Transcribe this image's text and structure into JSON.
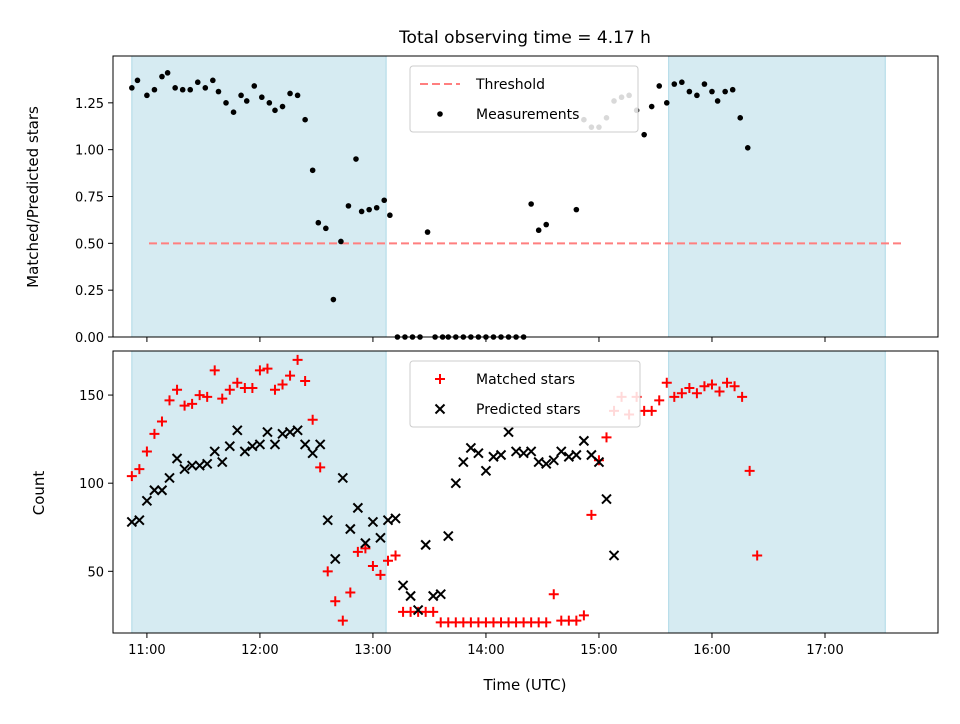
{
  "title": "Total observing time = 4.17 h",
  "xlabel": "Time (UTC)",
  "colors": {
    "shade": "#add8e6",
    "threshold": "#ff7f7f",
    "matched": "#ff0000",
    "predicted": "#000000",
    "measurement": "#000000"
  },
  "chart_data": [
    {
      "type": "scatter",
      "ylabel": "Matched/Predicted stars",
      "xlim": [
        "10:42",
        "18:00"
      ],
      "ylim": [
        0,
        1.5
      ],
      "yticks": [
        0.0,
        0.25,
        0.5,
        0.75,
        1.0,
        1.25
      ],
      "ytick_labels": [
        "0.00",
        "0.25",
        "0.50",
        "0.75",
        "1.00",
        "1.25"
      ],
      "xticks": [
        "11:00",
        "12:00",
        "13:00",
        "14:00",
        "15:00",
        "16:00",
        "17:00"
      ],
      "shaded_spans": [
        [
          "10:52",
          "13:07"
        ],
        [
          "15:37",
          "17:32"
        ]
      ],
      "threshold": {
        "name": "Threshold",
        "value": 0.5,
        "style": "dashed"
      },
      "legend_position": "upper center",
      "series": [
        {
          "name": "Measurements",
          "marker": "dot",
          "x": [
            "10:52",
            "10:55",
            "11:00",
            "11:04",
            "11:08",
            "11:11",
            "11:15",
            "11:19",
            "11:23",
            "11:27",
            "11:31",
            "11:35",
            "11:38",
            "11:42",
            "11:46",
            "11:50",
            "11:53",
            "11:57",
            "12:01",
            "12:05",
            "12:08",
            "12:12",
            "12:16",
            "12:20",
            "12:24",
            "12:28",
            "12:31",
            "12:35",
            "12:39",
            "12:43",
            "12:47",
            "12:51",
            "12:54",
            "12:58",
            "13:02",
            "13:06",
            "13:09",
            "13:13",
            "13:17",
            "13:21",
            "13:25",
            "13:29",
            "13:33",
            "13:37",
            "13:40",
            "13:44",
            "13:48",
            "13:52",
            "13:56",
            "14:00",
            "14:04",
            "14:08",
            "14:12",
            "14:16",
            "14:20",
            "14:24",
            "14:28",
            "14:32",
            "14:36",
            "14:40",
            "14:44",
            "14:48",
            "14:52",
            "14:56",
            "15:00",
            "15:04",
            "15:08",
            "15:12",
            "15:16",
            "15:20",
            "15:24",
            "15:28",
            "15:32",
            "15:36",
            "15:40",
            "15:44",
            "15:48",
            "15:52",
            "15:56",
            "16:00",
            "16:03",
            "16:07",
            "16:11",
            "16:15",
            "16:19",
            "16:23",
            "16:27",
            "16:30",
            "16:34",
            "16:38",
            "16:42",
            "16:46",
            "16:50",
            "16:54",
            "16:58",
            "17:01",
            "17:05",
            "17:09",
            "17:13",
            "17:17",
            "17:21",
            "17:25",
            "17:29",
            "17:32"
          ],
          "y": [
            1.33,
            1.37,
            1.29,
            1.32,
            1.39,
            1.41,
            1.33,
            1.32,
            1.32,
            1.36,
            1.33,
            1.37,
            1.31,
            1.25,
            1.2,
            1.29,
            1.26,
            1.34,
            1.28,
            1.25,
            1.21,
            1.23,
            1.3,
            1.29,
            1.16,
            0.89,
            0.61,
            0.58,
            0.2,
            0.51,
            0.7,
            0.95,
            0.67,
            0.68,
            0.69,
            0.73,
            0.65,
            0.0,
            0.0,
            0.0,
            0.0,
            0.56,
            0.0,
            0.0,
            0.0,
            0.0,
            0.0,
            0.0,
            0.0,
            0.0,
            0.0,
            0.0,
            0.0,
            0.0,
            0.0,
            0.71,
            0.57,
            0.6,
            null,
            null,
            null,
            0.68,
            1.16,
            1.12,
            1.12,
            1.17,
            1.26,
            1.28,
            1.29,
            1.21,
            1.08,
            1.23,
            1.34,
            1.25,
            1.35,
            1.36,
            1.31,
            1.29,
            1.35,
            1.31,
            1.26,
            1.31,
            1.32,
            1.17,
            1.01,
            null,
            null,
            null,
            null,
            null,
            null,
            null,
            null,
            null,
            null,
            null,
            null,
            null,
            null,
            null,
            null,
            null,
            null,
            null
          ]
        }
      ]
    },
    {
      "type": "scatter",
      "ylabel": "Count",
      "xlim": [
        "10:42",
        "18:00"
      ],
      "ylim": [
        15,
        175
      ],
      "yticks": [
        50,
        100,
        150
      ],
      "ytick_labels": [
        "50",
        "100",
        "150"
      ],
      "xticks": [
        "11:00",
        "12:00",
        "13:00",
        "14:00",
        "15:00",
        "16:00",
        "17:00"
      ],
      "xtick_labels": [
        "11:00",
        "12:00",
        "13:00",
        "14:00",
        "15:00",
        "16:00",
        "17:00"
      ],
      "shaded_spans": [
        [
          "10:52",
          "13:07"
        ],
        [
          "15:37",
          "17:32"
        ]
      ],
      "legend_position": "upper center",
      "series": [
        {
          "name": "Matched stars",
          "marker": "plus",
          "x": [
            "10:52",
            "10:56",
            "11:00",
            "11:04",
            "11:08",
            "11:12",
            "11:16",
            "11:20",
            "11:24",
            "11:28",
            "11:32",
            "11:36",
            "11:40",
            "11:44",
            "11:48",
            "11:52",
            "11:56",
            "12:00",
            "12:04",
            "12:08",
            "12:12",
            "12:16",
            "12:20",
            "12:24",
            "12:28",
            "12:32",
            "12:36",
            "12:40",
            "12:44",
            "12:48",
            "12:52",
            "12:56",
            "13:00",
            "13:04",
            "13:08",
            "13:12",
            "13:16",
            "13:20",
            "13:24",
            "13:28",
            "13:32",
            "13:36",
            "13:40",
            "13:44",
            "13:48",
            "13:52",
            "13:56",
            "14:00",
            "14:04",
            "14:08",
            "14:12",
            "14:16",
            "14:20",
            "14:24",
            "14:28",
            "14:32",
            "14:36",
            "14:40",
            "14:44",
            "14:48",
            "14:52",
            "14:56",
            "15:00",
            "15:04",
            "15:08",
            "15:12",
            "15:16",
            "15:20",
            "15:24",
            "15:28",
            "15:32",
            "15:36",
            "15:40",
            "15:44",
            "15:48",
            "15:52",
            "15:56",
            "16:00",
            "16:04",
            "16:08",
            "16:12",
            "16:16",
            "16:20",
            "16:24",
            "16:28",
            "16:32",
            "16:36",
            "16:40",
            "16:44",
            "16:48",
            "16:52",
            "16:56",
            "17:00",
            "17:04",
            "17:08",
            "17:12",
            "17:16",
            "17:20",
            "17:24",
            "17:28",
            "17:32"
          ],
          "y": [
            104,
            108,
            118,
            128,
            135,
            147,
            153,
            144,
            145,
            150,
            149,
            164,
            148,
            153,
            157,
            154,
            154,
            164,
            165,
            153,
            156,
            161,
            170,
            158,
            136,
            109,
            50,
            33,
            22,
            38,
            61,
            63,
            53,
            48,
            56,
            59,
            27,
            27,
            27,
            27,
            27,
            21,
            21,
            21,
            21,
            21,
            21,
            21,
            21,
            21,
            21,
            21,
            21,
            21,
            21,
            21,
            37,
            22,
            22,
            22,
            25,
            82,
            113,
            126,
            141,
            149,
            139,
            149,
            141,
            141,
            147,
            157,
            149,
            151,
            154,
            151,
            155,
            156,
            152,
            157,
            155,
            149,
            107,
            59,
            null,
            null,
            null,
            null,
            null,
            null,
            null,
            null,
            null,
            null,
            null,
            null,
            null,
            null,
            null,
            null,
            null
          ]
        },
        {
          "name": "Predicted stars",
          "marker": "x",
          "x": [
            "10:52",
            "10:56",
            "11:00",
            "11:04",
            "11:08",
            "11:12",
            "11:16",
            "11:20",
            "11:24",
            "11:28",
            "11:32",
            "11:36",
            "11:40",
            "11:44",
            "11:48",
            "11:52",
            "11:56",
            "12:00",
            "12:04",
            "12:08",
            "12:12",
            "12:16",
            "12:20",
            "12:24",
            "12:28",
            "12:32",
            "12:36",
            "12:40",
            "12:44",
            "12:48",
            "12:52",
            "12:56",
            "13:00",
            "13:04",
            "13:08",
            "13:12",
            "13:16",
            "13:20",
            "13:24",
            "13:28",
            "13:32",
            "13:36",
            "13:40",
            "13:44",
            "13:48",
            "13:52",
            "13:56",
            "14:00",
            "14:04",
            "14:08",
            "14:12",
            "14:16",
            "14:20",
            "14:24",
            "14:28",
            "14:32",
            "14:36",
            "14:40",
            "14:44",
            "14:48",
            "14:52",
            "14:56",
            "15:00",
            "15:04",
            "15:08",
            "15:12",
            "15:16",
            "15:20",
            "15:24",
            "15:28",
            "15:32",
            "15:36",
            "15:40",
            "15:44",
            "15:48",
            "15:52",
            "15:56",
            "16:00",
            "16:04",
            "16:08",
            "16:12",
            "16:16",
            "16:20",
            "16:24",
            "16:28",
            "16:32",
            "16:36",
            "16:40",
            "16:44",
            "16:48",
            "16:52",
            "16:56",
            "17:00",
            "17:04",
            "17:08",
            "17:12",
            "17:16",
            "17:20",
            "17:24",
            "17:28",
            "17:32"
          ],
          "y": [
            78,
            79,
            90,
            96,
            96,
            103,
            114,
            108,
            110,
            110,
            111,
            118,
            112,
            121,
            130,
            118,
            121,
            122,
            129,
            122,
            128,
            129,
            130,
            122,
            117,
            122,
            79,
            57,
            103,
            74,
            86,
            66,
            78,
            69,
            79,
            80,
            42,
            36,
            28,
            65,
            36,
            37,
            70,
            100,
            112,
            120,
            117,
            107,
            115,
            116,
            129,
            118,
            117,
            118,
            112,
            111,
            113,
            118,
            115,
            116,
            124,
            116,
            112,
            91,
            59,
            null,
            null,
            null,
            null,
            null,
            null,
            null,
            null,
            null,
            null,
            null,
            null,
            null,
            null,
            null,
            null,
            null,
            null,
            null,
            null,
            null,
            null,
            null,
            null,
            null,
            null,
            null,
            null,
            null,
            null,
            null,
            null,
            null,
            null,
            null,
            null
          ]
        }
      ]
    }
  ]
}
